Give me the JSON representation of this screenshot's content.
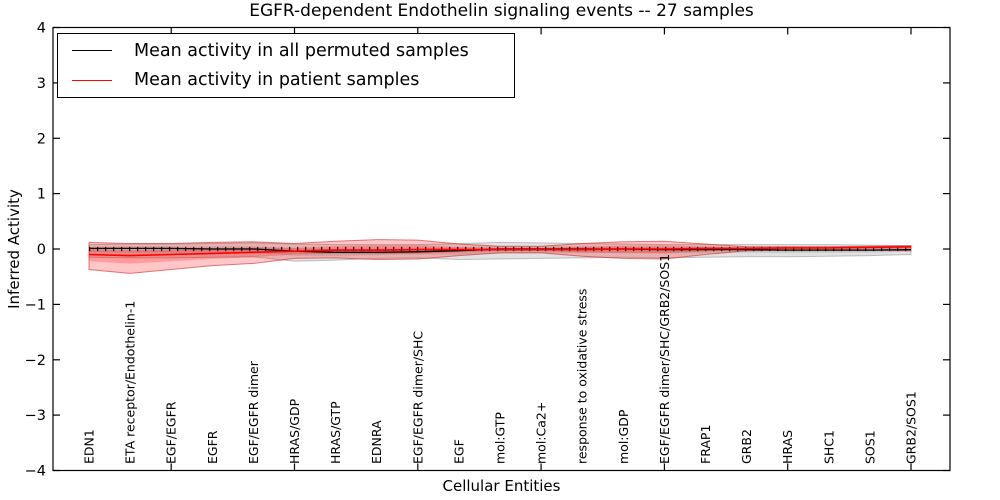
{
  "figure": {
    "title": "EGFR-dependent Endothelin signaling events -- 27 samples",
    "xlabel": "Cellular Entities",
    "ylabel": "Inferred Activity"
  },
  "legend": {
    "items": [
      {
        "label": "Mean activity in all permuted samples",
        "color": "#000000"
      },
      {
        "label": "Mean activity in patient samples",
        "color": "#ff0000"
      }
    ]
  },
  "chart_data": {
    "type": "line",
    "title": "EGFR-dependent Endothelin signaling events -- 27 samples",
    "xlabel": "Cellular Entities",
    "ylabel": "Inferred Activity",
    "ylim": [
      -4,
      4
    ],
    "yticks": [
      -4,
      -3,
      -2,
      -1,
      0,
      1,
      2,
      3,
      4
    ],
    "xtick_indices": [
      2,
      5,
      8,
      11,
      14,
      17,
      20
    ],
    "grid": false,
    "zero_line": true,
    "legend_position": "upper left",
    "inner_band_ratio": 0.45,
    "categories": [
      "EDN1",
      "ETA receptor/Endothelin-1",
      "EGF/EGFR",
      "EGFR",
      "EGF/EGFR dimer",
      "HRAS/GDP",
      "HRAS/GTP",
      "EDNRA",
      "EGF/EGFR dimer/SHC",
      "EGF",
      "mol:GTP",
      "mol:Ca2+",
      "response to oxidative stress",
      "mol:GDP",
      "EGF/EGFR dimer/SHC/GRB2/SOS1",
      "FRAP1",
      "GRB2",
      "HRAS",
      "SHC1",
      "SOS1",
      "GRB2/SOS1"
    ],
    "series": [
      {
        "name": "Mean activity in all permuted samples",
        "color": "#000000",
        "band_fill": "rgba(110,110,110,0.20)",
        "band_edge": "rgba(90,90,90,0.35)",
        "mean": [
          0.01,
          0.01,
          0.01,
          0.0,
          0.0,
          -0.04,
          -0.06,
          -0.06,
          -0.05,
          -0.03,
          0.0,
          0.0,
          0.0,
          0.0,
          -0.01,
          -0.01,
          -0.01,
          -0.02,
          -0.02,
          -0.02,
          -0.01
        ],
        "upper": [
          0.08,
          0.09,
          0.09,
          0.1,
          0.11,
          0.09,
          0.08,
          0.08,
          0.08,
          0.1,
          0.12,
          0.11,
          0.1,
          0.09,
          0.08,
          0.08,
          0.08,
          0.08,
          0.08,
          0.07,
          0.06
        ],
        "lower": [
          -0.15,
          -0.16,
          -0.16,
          -0.15,
          -0.14,
          -0.22,
          -0.2,
          -0.17,
          -0.16,
          -0.19,
          -0.18,
          -0.17,
          -0.16,
          -0.15,
          -0.16,
          -0.15,
          -0.14,
          -0.14,
          -0.13,
          -0.12,
          -0.1
        ]
      },
      {
        "name": "Mean activity in patient samples",
        "color": "#ff0000",
        "band_fill": "rgba(255,0,0,0.22)",
        "band_edge": "rgba(205,40,40,0.60)",
        "mean": [
          -0.1,
          -0.12,
          -0.1,
          -0.08,
          -0.06,
          -0.04,
          -0.02,
          -0.02,
          -0.01,
          -0.01,
          -0.01,
          -0.01,
          -0.01,
          0.0,
          0.0,
          0.01,
          0.01,
          0.02,
          0.02,
          0.03,
          0.04
        ],
        "upper": [
          0.12,
          0.1,
          0.1,
          0.12,
          0.13,
          0.1,
          0.14,
          0.17,
          0.16,
          0.09,
          0.05,
          0.05,
          0.1,
          0.13,
          0.14,
          0.09,
          0.04,
          0.04,
          0.04,
          0.05,
          0.06
        ],
        "lower": [
          -0.37,
          -0.44,
          -0.37,
          -0.3,
          -0.26,
          -0.17,
          -0.16,
          -0.19,
          -0.18,
          -0.12,
          -0.07,
          -0.07,
          -0.13,
          -0.17,
          -0.18,
          -0.1,
          -0.03,
          -0.02,
          -0.02,
          -0.02,
          -0.03
        ]
      }
    ]
  }
}
